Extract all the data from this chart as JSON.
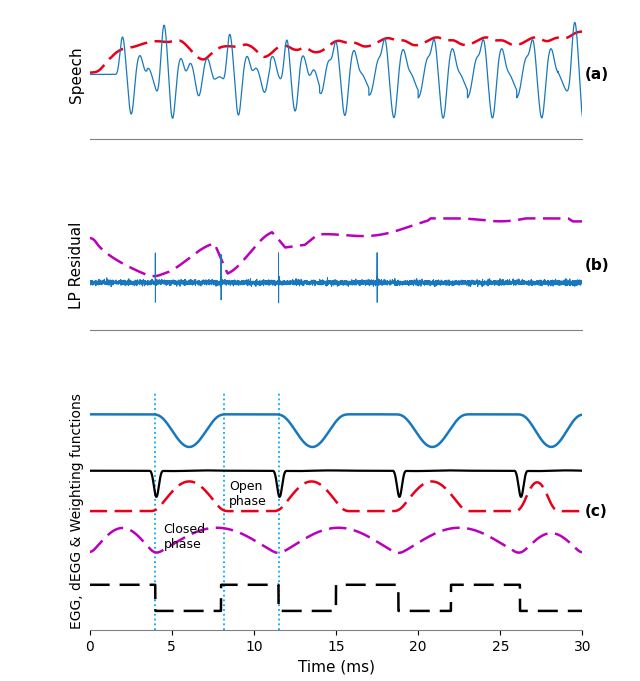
{
  "xlabel": "Time (ms)",
  "xlim": [
    0,
    30
  ],
  "panel_a_label": "(a)",
  "panel_b_label": "(b)",
  "panel_c_label": "(c)",
  "ylabel_a": "Speech",
  "ylabel_b": "LP Residual",
  "ylabel_c": "EGG, dEGG & Weighting functions",
  "blue_color": "#1878be",
  "red_color": "#e8001a",
  "magenta_color": "#bb00bb",
  "black_color": "#000000",
  "cyan_color": "#00aaff",
  "open_phase_text": "Open\nphase",
  "closed_phase_text": "Closed\nphase",
  "vline_positions": [
    4.0,
    8.2,
    11.5
  ],
  "gci_times": [
    4.0,
    11.5,
    18.8,
    26.2
  ],
  "tick_fontsize": 10,
  "label_fontsize": 11
}
